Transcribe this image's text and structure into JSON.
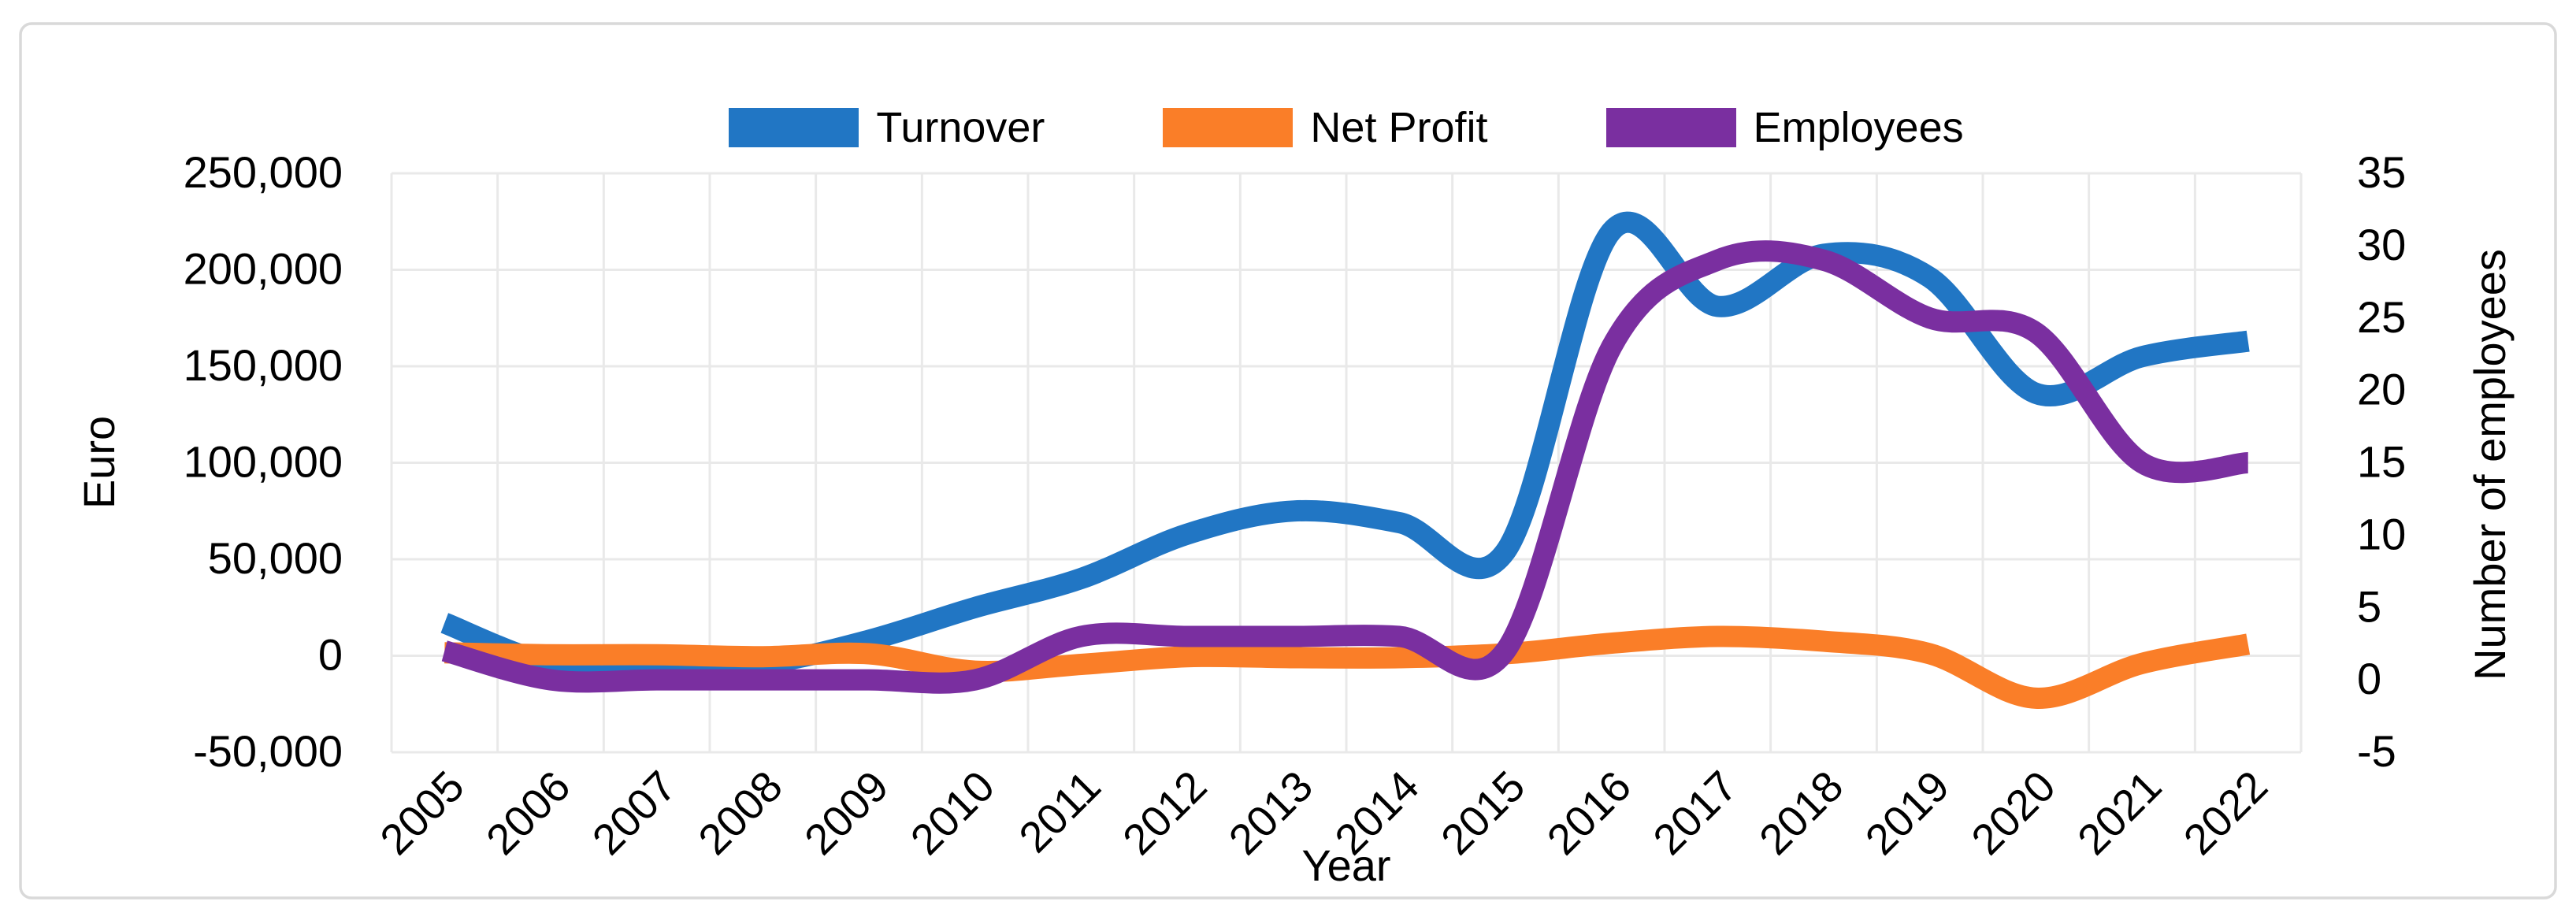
{
  "figure": {
    "background": "#FFFFFF",
    "border_color": "#D9D9D9",
    "gridline_color": "#E9E9E9"
  },
  "legend": {
    "items": [
      {
        "label": "Turnover",
        "color": "#2176C4"
      },
      {
        "label": "Net Profit",
        "color": "#FA7E28"
      },
      {
        "label": "Employees",
        "color": "#7A2FA0"
      }
    ]
  },
  "chart_data": {
    "type": "line",
    "title": "",
    "smooth": true,
    "grid": true,
    "legend_position": "top",
    "categories": [
      "2005",
      "2006",
      "2007",
      "2008",
      "2009",
      "2010",
      "2011",
      "2012",
      "2013",
      "2014",
      "2015",
      "2016",
      "2017",
      "2018",
      "2019",
      "2020",
      "2021",
      "2022"
    ],
    "series": [
      {
        "name": "Turnover",
        "axis": "left",
        "color": "#2176C4",
        "stroke_width": 27,
        "values": [
          17000,
          -4000,
          -5000,
          -4000,
          8000,
          25000,
          40000,
          63000,
          75000,
          69000,
          54000,
          220000,
          181000,
          208000,
          196000,
          136000,
          155000,
          163000
        ]
      },
      {
        "name": "Net Profit",
        "axis": "left",
        "color": "#FA7E28",
        "stroke_width": 27,
        "values": [
          1500,
          500,
          500,
          -500,
          1000,
          -8000,
          -4500,
          -500,
          -1000,
          -1000,
          1000,
          6500,
          10000,
          7500,
          1000,
          -22000,
          -4000,
          6000
        ]
      },
      {
        "name": "Employees",
        "axis": "right",
        "color": "#7A2FA0",
        "stroke_width": 27,
        "values": [
          2,
          0,
          0,
          0,
          0,
          0,
          3,
          3,
          3,
          3,
          2,
          23,
          29,
          29,
          25,
          24,
          15,
          15
        ]
      }
    ],
    "x_axis": {
      "label": "Year"
    },
    "left_axis": {
      "label": "Euro",
      "min": -50000,
      "max": 250000,
      "tick_step": 50000,
      "tick_labels": [
        "250,000",
        "200,000",
        "150,000",
        "100,000",
        "50,000",
        "0",
        "-50,000"
      ]
    },
    "right_axis": {
      "label": "Number of employees",
      "min": -5,
      "max": 35,
      "tick_step": 5,
      "tick_labels": [
        "35",
        "30",
        "25",
        "20",
        "15",
        "10",
        "5",
        "0",
        "-5"
      ]
    }
  }
}
